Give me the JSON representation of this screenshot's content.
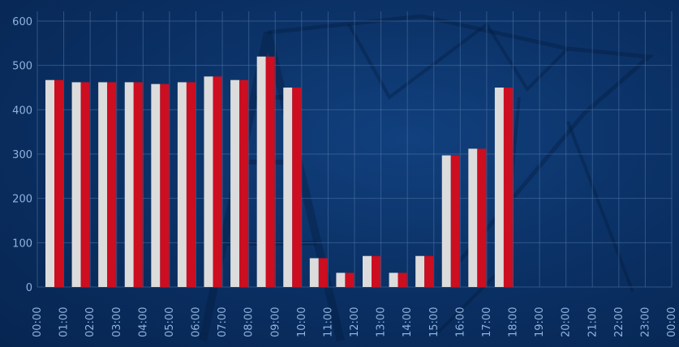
{
  "chart_data": {
    "type": "bar",
    "title": "",
    "xlabel": "",
    "ylabel": "",
    "ylim": [
      0,
      600
    ],
    "yticks": [
      0,
      100,
      200,
      300,
      400,
      500,
      600
    ],
    "grid": true,
    "legend": "none",
    "categories": [
      "00:00",
      "01:00",
      "02:00",
      "03:00",
      "04:00",
      "05:00",
      "06:00",
      "07:00",
      "08:00",
      "09:00",
      "10:00",
      "11:00",
      "12:00",
      "13:00",
      "14:00",
      "15:00",
      "16:00",
      "17:00",
      "18:00",
      "19:00",
      "20:00",
      "21:00",
      "22:00",
      "23:00",
      "00:00"
    ],
    "series": [
      {
        "color": "#dcdcdc",
        "values": [
          467,
          462,
          462,
          462,
          458,
          462,
          475,
          467,
          520,
          450,
          65,
          32,
          70,
          32,
          70,
          297,
          312,
          450,
          null,
          null,
          null,
          null,
          null,
          null,
          null
        ]
      },
      {
        "color": "#cc0e20",
        "values": [
          467,
          462,
          462,
          462,
          458,
          462,
          475,
          467,
          520,
          450,
          65,
          32,
          70,
          32,
          70,
          297,
          312,
          450,
          null,
          null,
          null,
          null,
          null,
          null,
          null
        ]
      }
    ]
  }
}
